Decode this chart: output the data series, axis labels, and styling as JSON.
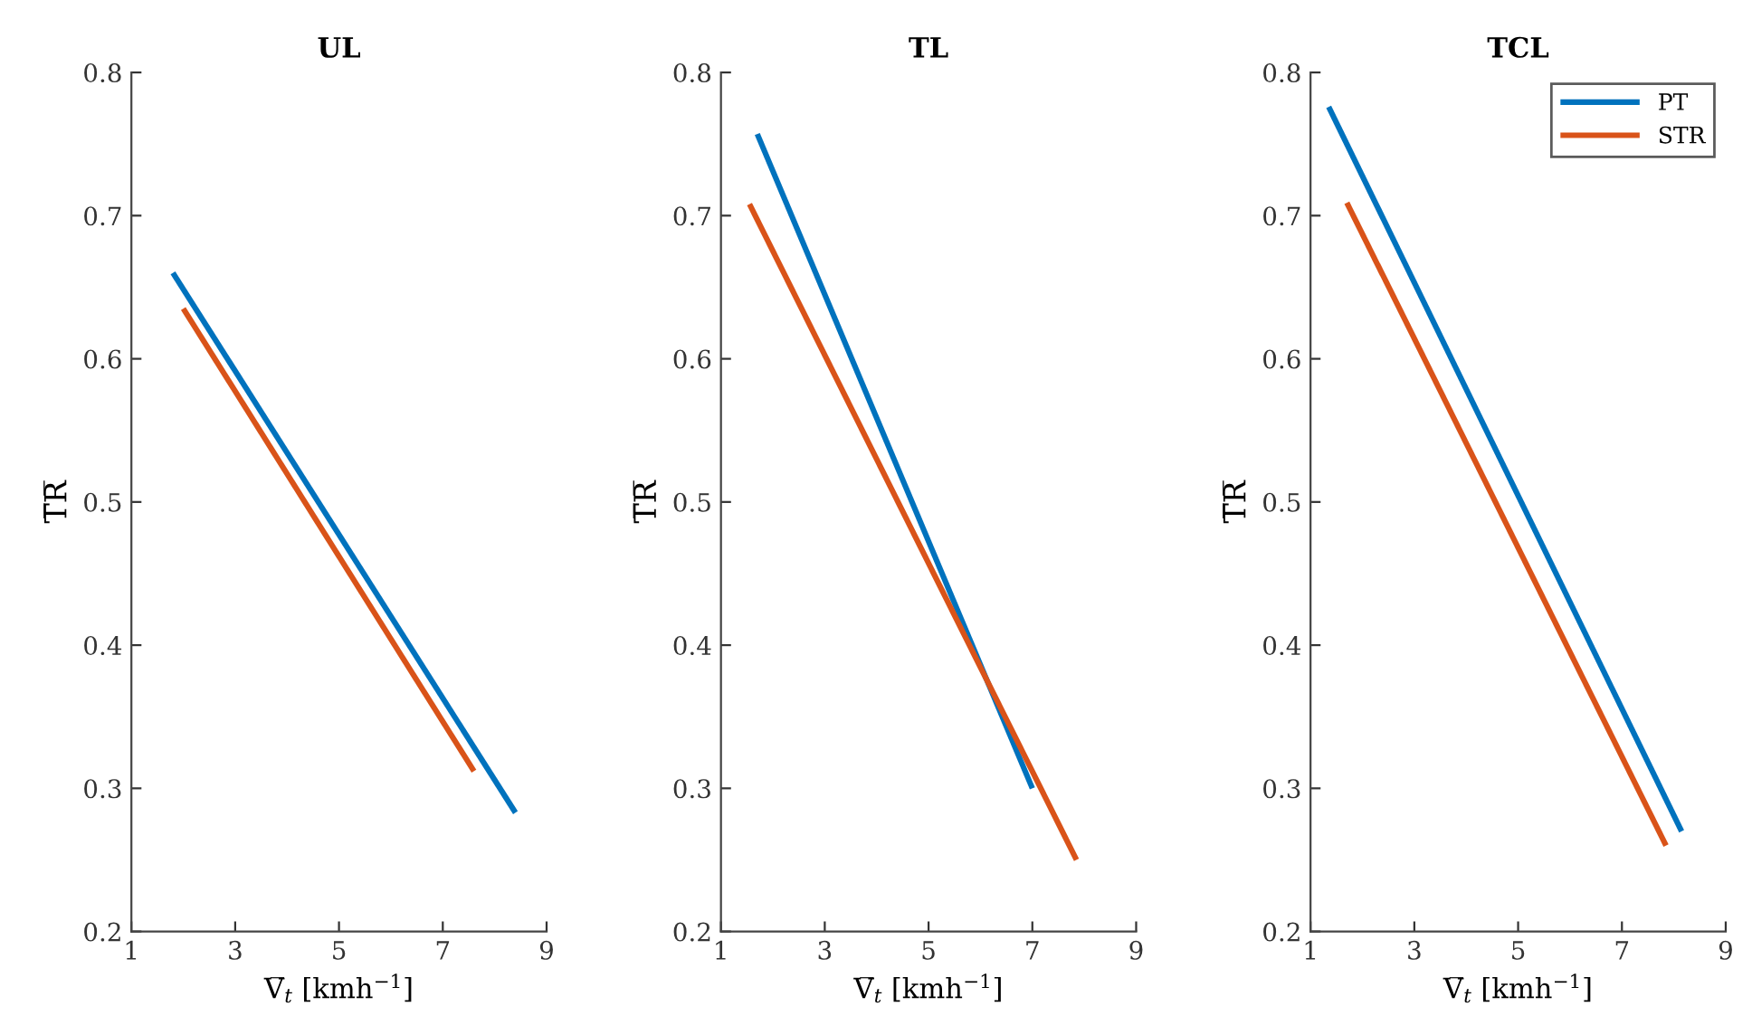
{
  "chart_data": [
    {
      "type": "line",
      "title": "UL",
      "xlabel": "V̅$_{t}$ [kmh$^{−1}$]",
      "ylabel": "T̅R̅",
      "xlim": [
        1,
        9
      ],
      "ylim": [
        0.2,
        0.8
      ],
      "xticks": [
        1,
        3,
        5,
        7,
        9
      ],
      "yticks": [
        0.2,
        0.3,
        0.4,
        0.5,
        0.6,
        0.7,
        0.8
      ],
      "grid": false,
      "legend": false,
      "series": [
        {
          "color": "#0072bd",
          "x": [
            1.8,
            8.4
          ],
          "values": [
            0.66,
            0.283
          ]
        },
        {
          "color": "#d95319",
          "x": [
            2.0,
            7.6
          ],
          "values": [
            0.635,
            0.312
          ]
        }
      ]
    },
    {
      "type": "line",
      "title": "TL",
      "xlabel": "V̅$_{t}$ [kmh$^{−1}$]",
      "ylabel": "T̅R̅",
      "xlim": [
        1,
        9
      ],
      "ylim": [
        0.2,
        0.8
      ],
      "xticks": [
        1,
        3,
        5,
        7,
        9
      ],
      "yticks": [
        0.2,
        0.3,
        0.4,
        0.5,
        0.6,
        0.7,
        0.8
      ],
      "grid": false,
      "legend": false,
      "series": [
        {
          "color": "#0072bd",
          "x": [
            1.7,
            7.0
          ],
          "values": [
            0.757,
            0.3
          ]
        },
        {
          "color": "#d95319",
          "x": [
            1.55,
            7.85
          ],
          "values": [
            0.708,
            0.25
          ]
        }
      ]
    },
    {
      "type": "line",
      "title": "TCL",
      "xlabel": "V̅$_{t}$ [kmh$^{−1}$]",
      "ylabel": "T̅R̅",
      "xlim": [
        1,
        9
      ],
      "ylim": [
        0.2,
        0.8
      ],
      "xticks": [
        1,
        3,
        5,
        7,
        9
      ],
      "yticks": [
        0.2,
        0.3,
        0.4,
        0.5,
        0.6,
        0.7,
        0.8
      ],
      "grid": false,
      "legend": "top right",
      "series": [
        {
          "name": "PT",
          "color": "#0072bd",
          "x": [
            1.35,
            8.15
          ],
          "values": [
            0.776,
            0.27
          ]
        },
        {
          "name": "STR",
          "color": "#d95319",
          "x": [
            1.7,
            7.85
          ],
          "values": [
            0.709,
            0.26
          ]
        }
      ]
    }
  ]
}
